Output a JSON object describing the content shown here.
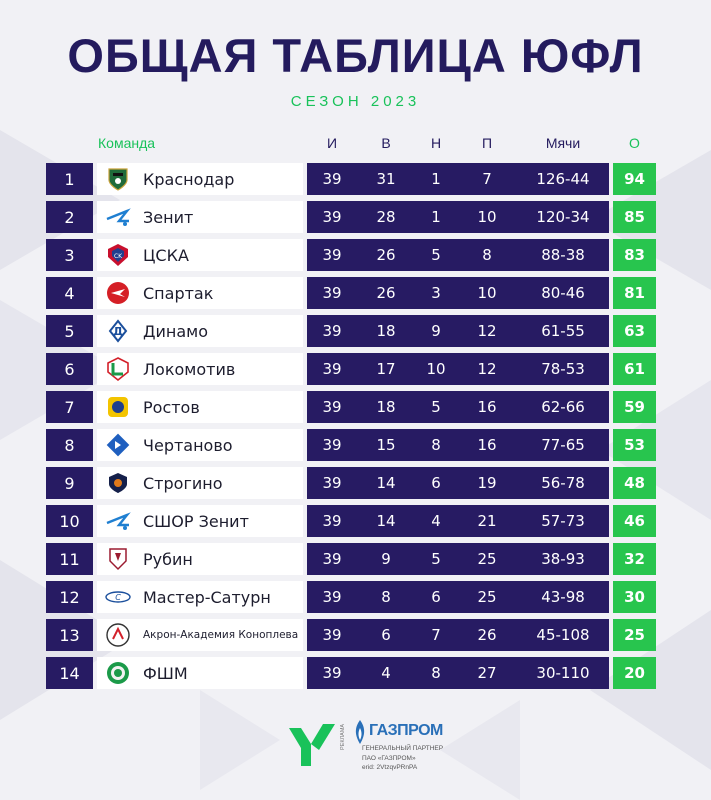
{
  "header": {
    "title": "ОБЩАЯ ТАБЛИЦА ЮФЛ",
    "subtitle": "СЕЗОН 2023"
  },
  "columns": {
    "team": "Команда",
    "played": "И",
    "won": "В",
    "drawn": "Н",
    "lost": "П",
    "goals": "Мячи",
    "points": "О"
  },
  "rows": [
    {
      "pos": "1",
      "team": "Краснодар",
      "played": "39",
      "won": "31",
      "drawn": "1",
      "lost": "7",
      "goals": "126-44",
      "points": "94",
      "logo": "krasnodar-logo"
    },
    {
      "pos": "2",
      "team": "Зенит",
      "played": "39",
      "won": "28",
      "drawn": "1",
      "lost": "10",
      "goals": "120-34",
      "points": "85",
      "logo": "zenit-logo"
    },
    {
      "pos": "3",
      "team": "ЦСКА",
      "played": "39",
      "won": "26",
      "drawn": "5",
      "lost": "8",
      "goals": "88-38",
      "points": "83",
      "logo": "cska-logo"
    },
    {
      "pos": "4",
      "team": "Спартак",
      "played": "39",
      "won": "26",
      "drawn": "3",
      "lost": "10",
      "goals": "80-46",
      "points": "81",
      "logo": "spartak-logo"
    },
    {
      "pos": "5",
      "team": "Динамо",
      "played": "39",
      "won": "18",
      "drawn": "9",
      "lost": "12",
      "goals": "61-55",
      "points": "63",
      "logo": "dynamo-logo"
    },
    {
      "pos": "6",
      "team": "Локомотив",
      "played": "39",
      "won": "17",
      "drawn": "10",
      "lost": "12",
      "goals": "78-53",
      "points": "61",
      "logo": "lokomotiv-logo"
    },
    {
      "pos": "7",
      "team": "Ростов",
      "played": "39",
      "won": "18",
      "drawn": "5",
      "lost": "16",
      "goals": "62-66",
      "points": "59",
      "logo": "rostov-logo"
    },
    {
      "pos": "8",
      "team": "Чертаново",
      "played": "39",
      "won": "15",
      "drawn": "8",
      "lost": "16",
      "goals": "77-65",
      "points": "53",
      "logo": "chertanovo-logo"
    },
    {
      "pos": "9",
      "team": "Строгино",
      "played": "39",
      "won": "14",
      "drawn": "6",
      "lost": "19",
      "goals": "56-78",
      "points": "48",
      "logo": "strogino-logo"
    },
    {
      "pos": "10",
      "team": "СШОР Зенит",
      "played": "39",
      "won": "14",
      "drawn": "4",
      "lost": "21",
      "goals": "57-73",
      "points": "46",
      "logo": "sshor-zenit-logo"
    },
    {
      "pos": "11",
      "team": "Рубин",
      "played": "39",
      "won": "9",
      "drawn": "5",
      "lost": "25",
      "goals": "38-93",
      "points": "32",
      "logo": "rubin-logo"
    },
    {
      "pos": "12",
      "team": "Мастер-Сатурн",
      "played": "39",
      "won": "8",
      "drawn": "6",
      "lost": "25",
      "goals": "43-98",
      "points": "30",
      "logo": "master-saturn-logo"
    },
    {
      "pos": "13",
      "team": "Акрон-Академия Коноплева",
      "played": "39",
      "won": "6",
      "drawn": "7",
      "lost": "26",
      "goals": "45-108",
      "points": "25",
      "logo": "akron-logo"
    },
    {
      "pos": "14",
      "team": "ФШМ",
      "played": "39",
      "won": "4",
      "drawn": "8",
      "lost": "27",
      "goals": "30-110",
      "points": "20",
      "logo": "fshm-logo"
    }
  ],
  "footer": {
    "reklama": "РЕКЛАМА",
    "partner_name": "ГАЗПРОМ",
    "partner_role": "ГЕНЕРАЛЬНЫЙ ПАРТНЕР",
    "partner_company": "ПАО «ГАЗПРОМ»",
    "erid": "erid: 2VtzqvPRnPA"
  },
  "colors": {
    "navy": "#271b63",
    "green": "#28c54e",
    "title": "#241b5e"
  }
}
